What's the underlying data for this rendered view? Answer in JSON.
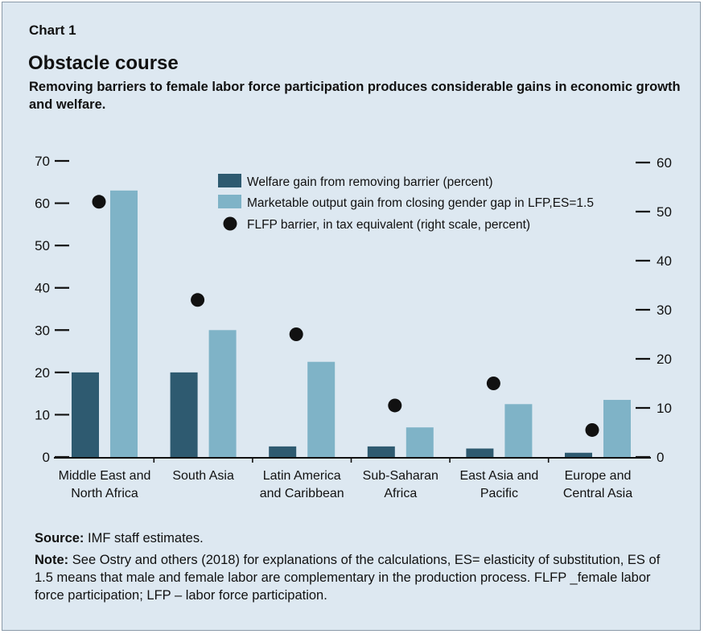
{
  "header": {
    "label": "Chart 1",
    "title": "Obstacle course",
    "subtitle": "Removing barriers to female labor force participation produces considerable gains in economic growth and welfare."
  },
  "footer": {
    "source_label": "Source:",
    "source_text": "IMF staff estimates.",
    "note_label": "Note:",
    "note_text": "See Ostry and others (2018) for explanations of the calculations, ES= elasticity of substitution, ES of 1.5 means that male and female labor are complementary in the production process. FLFP _female labor force participation; LFP – labor force participation."
  },
  "chart_data": {
    "type": "bar",
    "categories": [
      [
        "Middle East and",
        "North Africa"
      ],
      [
        "South Asia"
      ],
      [
        "Latin America",
        "and Caribbean"
      ],
      [
        "Sub-Saharan",
        "Africa"
      ],
      [
        "East Asia and",
        "Pacific"
      ],
      [
        "Europe and",
        "Central Asia"
      ]
    ],
    "series": [
      {
        "name": "Welfare gain from removing barrier (percent)",
        "axis": "left",
        "kind": "bar",
        "color": "#2e5a70",
        "values": [
          20,
          20,
          2.5,
          2.5,
          2,
          1
        ]
      },
      {
        "name": "Marketable output gain from closing gender gap in LFP,ES=1.5",
        "axis": "left",
        "kind": "bar",
        "color": "#7fb3c7",
        "values": [
          63,
          30,
          22.5,
          7,
          12.5,
          13.5
        ]
      },
      {
        "name": "FLFP barrier, in tax equivalent (right scale, percent)",
        "axis": "right",
        "kind": "dot",
        "color": "#111111",
        "values": [
          52,
          32,
          25,
          10.5,
          15,
          5.5
        ]
      }
    ],
    "y_left": {
      "min": 0,
      "max": 70,
      "ticks": [
        "0",
        "10",
        "20",
        "30",
        "40",
        "50",
        "60",
        "70"
      ]
    },
    "y_right": {
      "min": 0,
      "max": 60,
      "ticks": [
        "0",
        "10",
        "20",
        "30",
        "40",
        "50",
        "60"
      ]
    },
    "grid": false,
    "legend_position": "top-right"
  }
}
